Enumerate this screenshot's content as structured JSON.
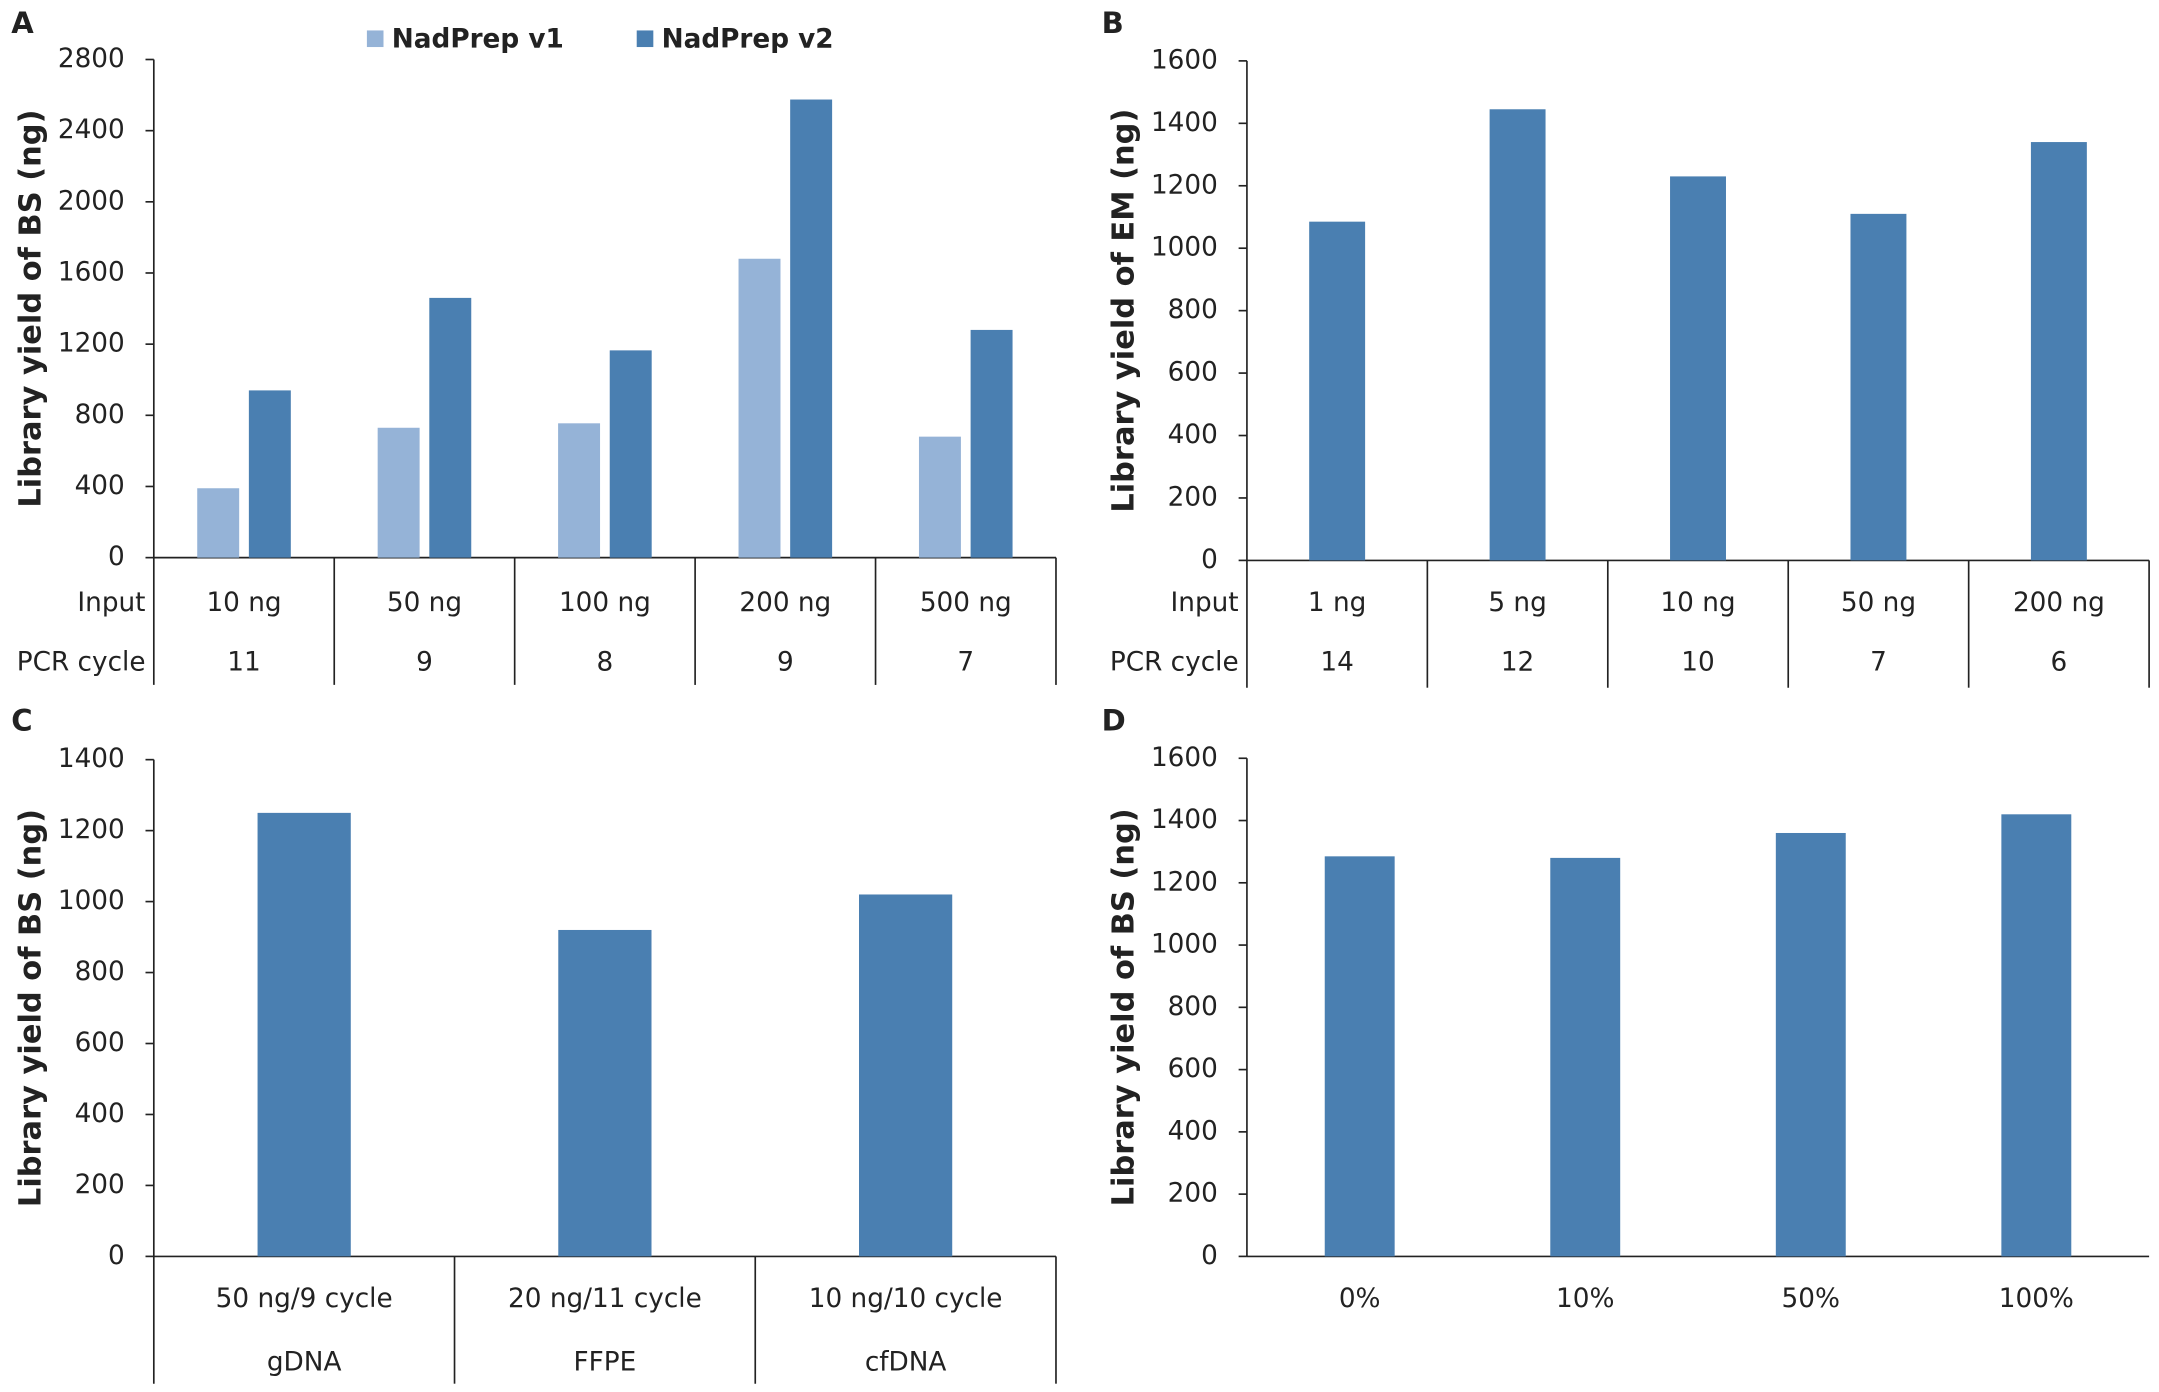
{
  "chart_data": [
    {
      "type": "bar",
      "panel": "A",
      "y_label": "Library yield of BS (ng)",
      "row_labels": [
        "Input",
        "PCR cycle"
      ],
      "categories": [
        "10 ng",
        "50 ng",
        "100 ng",
        "200 ng",
        "500 ng"
      ],
      "categories2": [
        "11",
        "9",
        "8",
        "9",
        "7"
      ],
      "series": [
        {
          "name": "NadPrep v1",
          "color": "#95b3d7",
          "values": [
            390,
            730,
            755,
            1680,
            680
          ]
        },
        {
          "name": "NadPrep v2",
          "color": "#4a7fb1",
          "values": [
            940,
            1460,
            1165,
            2575,
            1280
          ]
        }
      ],
      "ylim": [
        0,
        2800
      ],
      "yticks": [
        0,
        400,
        800,
        1200,
        1600,
        2000,
        2400,
        2800
      ],
      "legend": "top",
      "category_table": true
    },
    {
      "type": "bar",
      "panel": "B",
      "y_label": "Library yield of EM (ng)",
      "row_labels": [
        "Input",
        "PCR cycle"
      ],
      "categories": [
        "1 ng",
        "5 ng",
        "10 ng",
        "50 ng",
        "200 ng"
      ],
      "categories2": [
        "14",
        "12",
        "10",
        "7",
        "6"
      ],
      "series": [
        {
          "color": "#4a7fb1",
          "values": [
            1085,
            1445,
            1230,
            1110,
            1340
          ]
        }
      ],
      "ylim": [
        0,
        1600
      ],
      "yticks": [
        0,
        200,
        400,
        600,
        800,
        1000,
        1200,
        1400,
        1600
      ],
      "category_table": true
    },
    {
      "type": "bar",
      "panel": "C",
      "y_label": "Library yield of BS (ng)",
      "categories": [
        "50 ng/9 cycle",
        "20 ng/11 cycle",
        "10 ng/10 cycle"
      ],
      "categories2": [
        "gDNA",
        "FFPE",
        "cfDNA"
      ],
      "series": [
        {
          "color": "#4a7fb1",
          "values": [
            1250,
            920,
            1020
          ]
        }
      ],
      "ylim": [
        0,
        1400
      ],
      "yticks": [
        0,
        200,
        400,
        600,
        800,
        1000,
        1200,
        1400
      ],
      "category_table": true
    },
    {
      "type": "bar",
      "panel": "D",
      "y_label": "Library yield of BS (ng)",
      "categories": [
        "0%",
        "10%",
        "50%",
        "100%"
      ],
      "series": [
        {
          "color": "#4a7fb1",
          "values": [
            1285,
            1280,
            1360,
            1420
          ]
        }
      ],
      "ylim": [
        0,
        1600
      ],
      "yticks": [
        0,
        200,
        400,
        600,
        800,
        1000,
        1200,
        1400,
        1600
      ],
      "category_table": false
    }
  ]
}
